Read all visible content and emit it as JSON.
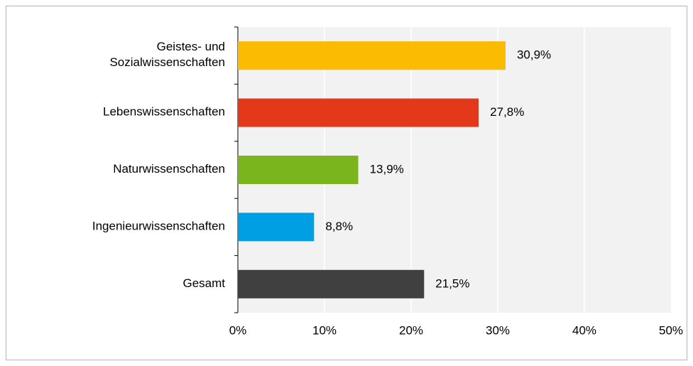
{
  "chart_data": {
    "type": "hbar",
    "categories": [
      "Geistes- und\nSozialwissenschaften",
      "Lebenswissenschaften",
      "Naturwissenschaften",
      "Ingenieurwissenschaften",
      "Gesamt"
    ],
    "values": [
      30.9,
      27.8,
      13.9,
      8.8,
      21.5
    ],
    "value_labels": [
      "30,9%",
      "27,8%",
      "13,9%",
      "8,8%",
      "21,5%"
    ],
    "colors": [
      "#fbbb00",
      "#e3381a",
      "#7ab51d",
      "#009fe3",
      "#404040"
    ],
    "xlim": [
      0,
      50
    ],
    "xticks": [
      {
        "value": 0,
        "label": "0%"
      },
      {
        "value": 10,
        "label": "10%"
      },
      {
        "value": 20,
        "label": "20%"
      },
      {
        "value": 30,
        "label": "30%"
      },
      {
        "value": 40,
        "label": "40%"
      },
      {
        "value": 50,
        "label": "50%"
      }
    ],
    "grid": true
  }
}
